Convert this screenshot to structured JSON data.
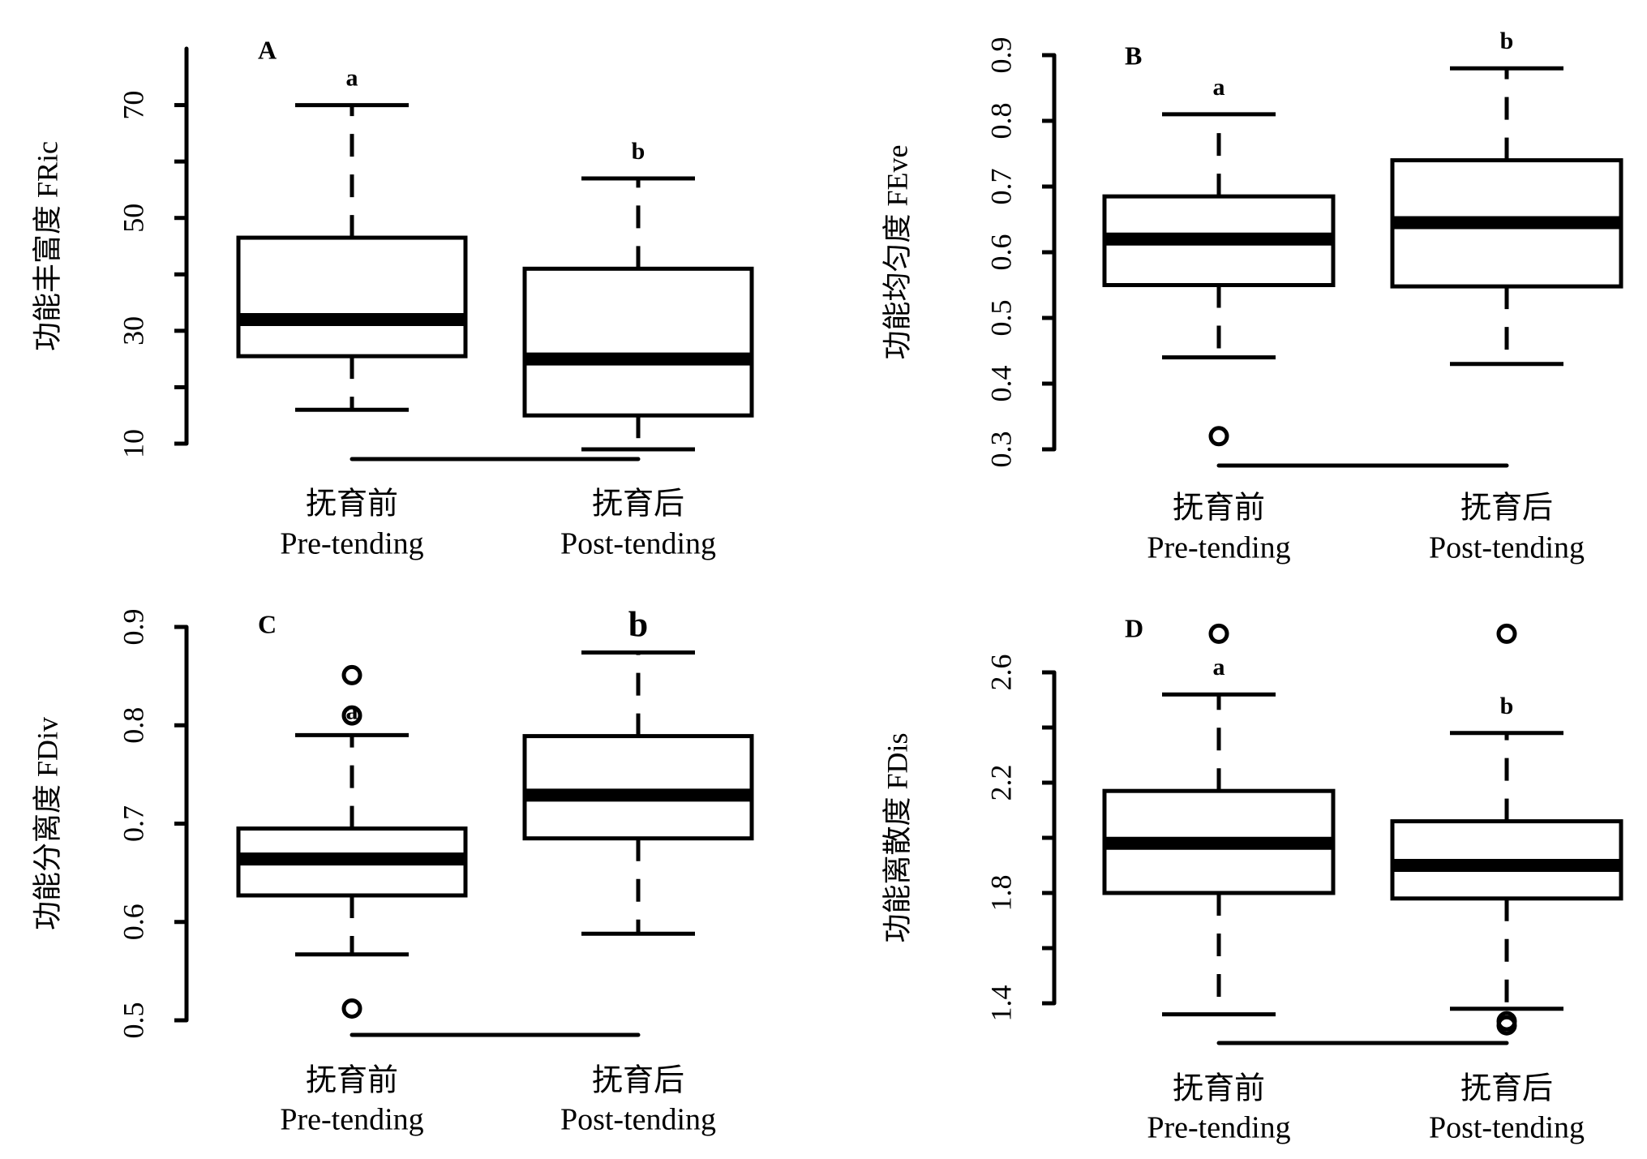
{
  "chart_data": [
    {
      "type": "boxplot",
      "panel_label": "A",
      "ylabel": "功能丰富度 FRic",
      "categories": [
        {
          "zh": "抚育前",
          "en": "Pre-tending"
        },
        {
          "zh": "抚育后",
          "en": "Post-tending"
        }
      ],
      "yticks": [
        10,
        30,
        50,
        70
      ],
      "minor_ticks": [
        20,
        40,
        60
      ],
      "ylim": [
        10,
        80
      ],
      "boxes": [
        {
          "whisker_low": 16,
          "q1": 25.5,
          "median": 32,
          "q3": 46.5,
          "whisker_high": 70,
          "outliers": [],
          "letter": "a"
        },
        {
          "whisker_low": 9,
          "q1": 15,
          "median": 25,
          "q3": 41,
          "whisker_high": 57,
          "outliers": [],
          "letter": "b"
        }
      ],
      "bracket": true
    },
    {
      "type": "boxplot",
      "panel_label": "B",
      "ylabel": "功能均匀度 FEve",
      "categories": [
        {
          "zh": "抚育前",
          "en": "Pre-tending"
        },
        {
          "zh": "抚育后",
          "en": "Post-tending"
        }
      ],
      "yticks": [
        0.3,
        0.4,
        0.5,
        0.6,
        0.7,
        0.8,
        0.9
      ],
      "minor_ticks": [],
      "ylim": [
        0.3,
        0.9
      ],
      "boxes": [
        {
          "whisker_low": 0.44,
          "q1": 0.55,
          "median": 0.62,
          "q3": 0.685,
          "whisker_high": 0.81,
          "outliers": [
            0.32
          ],
          "letter": "a"
        },
        {
          "whisker_low": 0.43,
          "q1": 0.548,
          "median": 0.645,
          "q3": 0.74,
          "whisker_high": 0.88,
          "outliers": [],
          "letter": "b"
        }
      ],
      "bracket": true
    },
    {
      "type": "boxplot",
      "panel_label": "C",
      "ylabel": "功能分离度 FDiv",
      "categories": [
        {
          "zh": "抚育前",
          "en": "Pre-tending"
        },
        {
          "zh": "抚育后",
          "en": "Post-tending"
        }
      ],
      "yticks": [
        0.5,
        0.6,
        0.7,
        0.8,
        0.9
      ],
      "minor_ticks": [],
      "ylim": [
        0.5,
        0.9
      ],
      "boxes": [
        {
          "whisker_low": 0.567,
          "q1": 0.627,
          "median": 0.664,
          "q3": 0.695,
          "whisker_high": 0.79,
          "outliers": [
            0.851,
            0.81,
            0.512
          ],
          "letter": "a"
        },
        {
          "whisker_low": 0.588,
          "q1": 0.685,
          "median": 0.729,
          "q3": 0.789,
          "whisker_high": 0.874,
          "outliers": [],
          "letter": "b"
        }
      ],
      "bracket": true
    },
    {
      "type": "boxplot",
      "panel_label": "D",
      "ylabel": "功能离散度 FDis",
      "categories": [
        {
          "zh": "抚育前",
          "en": "Pre-tending"
        },
        {
          "zh": "抚育后",
          "en": "Post-tending"
        }
      ],
      "yticks": [
        1.4,
        1.8,
        2.2,
        2.6
      ],
      "minor_ticks": [
        1.6,
        2.0,
        2.4
      ],
      "ylim": [
        1.4,
        2.6
      ],
      "boxes": [
        {
          "whisker_low": 1.36,
          "q1": 1.8,
          "median": 1.98,
          "q3": 2.17,
          "whisker_high": 2.52,
          "outliers": [
            2.74
          ],
          "letter": "a"
        },
        {
          "whisker_low": 1.38,
          "q1": 1.78,
          "median": 1.9,
          "q3": 2.06,
          "whisker_high": 2.38,
          "outliers": [
            2.74,
            1.335,
            1.32
          ],
          "letter": "b"
        }
      ],
      "bracket": true
    }
  ]
}
